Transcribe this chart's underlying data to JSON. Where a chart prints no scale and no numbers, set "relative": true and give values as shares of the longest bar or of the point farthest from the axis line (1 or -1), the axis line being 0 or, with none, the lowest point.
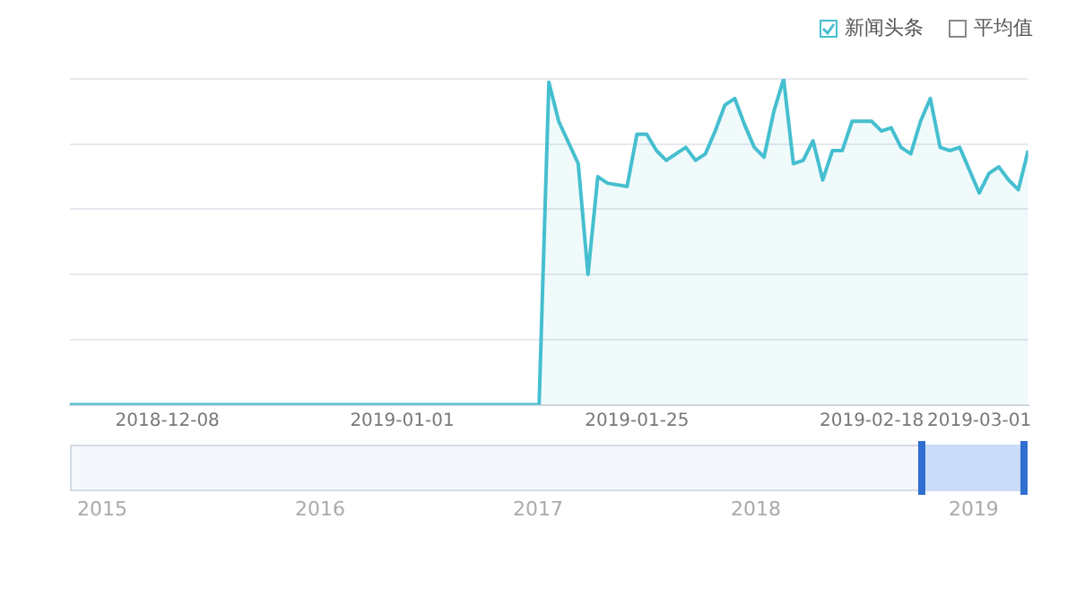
{
  "chart_data": {
    "type": "area",
    "relative": true,
    "x": [
      "2018-11-28",
      "2019-01-14",
      "2019-01-15",
      "2019-01-16",
      "2019-01-17",
      "2019-01-19",
      "2019-01-20",
      "2019-01-21",
      "2019-01-22",
      "2019-01-24",
      "2019-01-25",
      "2019-01-26",
      "2019-01-27",
      "2019-01-28",
      "2019-01-29",
      "2019-01-30",
      "2019-01-31",
      "2019-02-01",
      "2019-02-02",
      "2019-02-03",
      "2019-02-04",
      "2019-02-05",
      "2019-02-06",
      "2019-02-07",
      "2019-02-08",
      "2019-02-09",
      "2019-02-10",
      "2019-02-11",
      "2019-02-12",
      "2019-02-13",
      "2019-02-14",
      "2019-02-15",
      "2019-02-16",
      "2019-02-18",
      "2019-02-19",
      "2019-02-20",
      "2019-02-21",
      "2019-02-22",
      "2019-02-23",
      "2019-02-24",
      "2019-02-25",
      "2019-02-26",
      "2019-02-27",
      "2019-02-28",
      "2019-03-01",
      "2019-03-02",
      "2019-03-03",
      "2019-03-04",
      "2019-03-05",
      "2019-03-06"
    ],
    "series": [
      {
        "name": "新闻头条",
        "color": "#45bfcf",
        "values": [
          0,
          0,
          0,
          0.99,
          0.87,
          0.74,
          0.4,
          0.7,
          0.68,
          0.67,
          0.83,
          0.83,
          0.78,
          0.75,
          0.77,
          0.79,
          0.75,
          0.77,
          0.84,
          0.92,
          0.94,
          0.86,
          0.79,
          0.76,
          0.9,
          1.0,
          0.74,
          0.75,
          0.81,
          0.69,
          0.78,
          0.78,
          0.87,
          0.87,
          0.84,
          0.85,
          0.79,
          0.77,
          0.87,
          0.94,
          0.79,
          0.78,
          0.79,
          0.72,
          0.65,
          0.71,
          0.73,
          0.69,
          0.66,
          0.78
        ]
      }
    ],
    "xlim": [
      "2018-11-28",
      "2019-03-06"
    ],
    "xticks": [
      "2018-12-08",
      "2019-01-01",
      "2019-01-25",
      "2019-02-18",
      "2019-03-01"
    ],
    "x2lim": [
      2014.85,
      2019.25
    ],
    "x2ticks": [
      2015,
      2016,
      2017,
      2018,
      2019
    ],
    "grid": "y",
    "tick_labels": "x",
    "legend": "top right",
    "marker": "none",
    "annotations": [
      "平均值"
    ]
  }
}
